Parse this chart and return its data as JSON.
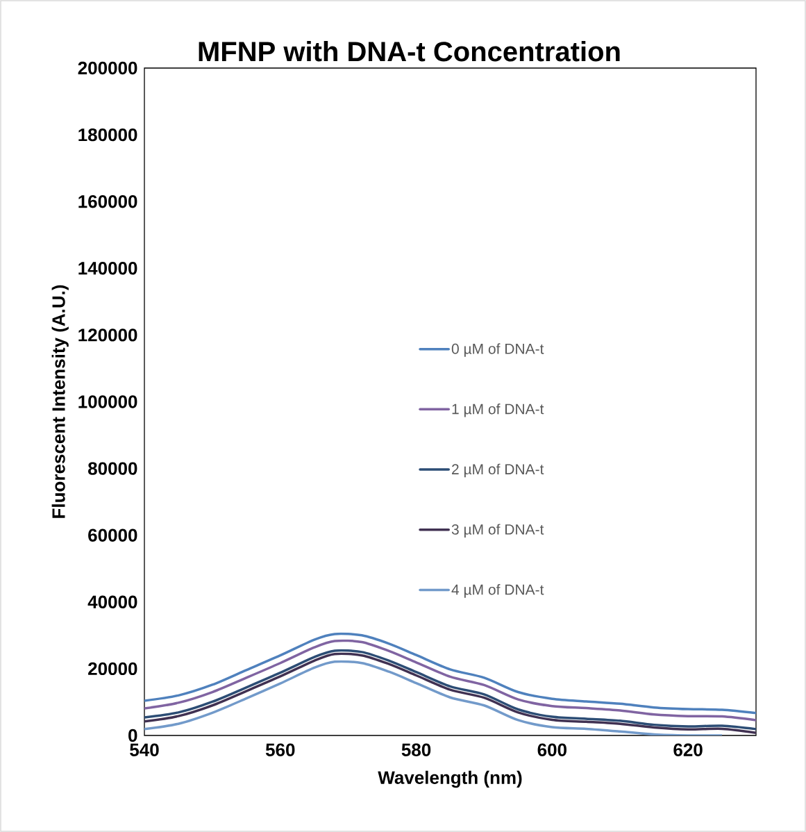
{
  "chart_data": {
    "type": "line",
    "title": "MFNP with DNA-t Concentration",
    "xlabel": "Wavelength (nm)",
    "ylabel": "Fluorescent Intensity (A.U.)",
    "x": [
      540,
      545,
      550,
      555,
      560,
      565,
      568,
      572,
      576,
      580,
      585,
      590,
      595,
      600,
      605,
      610,
      615,
      620,
      625,
      630
    ],
    "series": [
      {
        "name": "0 µM of DNA-t",
        "color": "#4f81bd",
        "values": [
          10400,
          12000,
          15200,
          19600,
          24000,
          28700,
          30400,
          30000,
          27500,
          24100,
          19800,
          17300,
          13000,
          11000,
          10200,
          9500,
          8400,
          7900,
          7700,
          6700
        ]
      },
      {
        "name": "1 µM of DNA-t",
        "color": "#8064a2",
        "values": [
          8100,
          9800,
          13000,
          17300,
          21700,
          26400,
          28300,
          28000,
          25300,
          21900,
          17600,
          15100,
          10800,
          8800,
          8200,
          7500,
          6300,
          5800,
          5700,
          4600
        ]
      },
      {
        "name": "2 µM of DNA-t",
        "color": "#2c4d75",
        "values": [
          5400,
          6900,
          10100,
          14400,
          18800,
          23500,
          25400,
          25000,
          22400,
          19000,
          14700,
          12300,
          7800,
          5600,
          5000,
          4400,
          3200,
          2700,
          2900,
          1900
        ]
      },
      {
        "name": "3 µM of DNA-t",
        "color": "#403152",
        "values": [
          4200,
          5800,
          9000,
          13300,
          17700,
          22400,
          24400,
          24000,
          21400,
          18000,
          13700,
          11300,
          6900,
          4700,
          4100,
          3500,
          2400,
          1800,
          2000,
          800
        ]
      },
      {
        "name": "4 µM of DNA-t",
        "color": "#729aca",
        "values": [
          1900,
          3500,
          6800,
          11100,
          15600,
          20300,
          22100,
          21700,
          19100,
          15700,
          11400,
          9000,
          4600,
          2500,
          2000,
          1200,
          300,
          0,
          0,
          null
        ]
      }
    ],
    "xlim": [
      540,
      630
    ],
    "xticks": [
      540,
      560,
      580,
      600,
      620
    ],
    "ylim": [
      0,
      200000
    ],
    "yticks": [
      0,
      20000,
      40000,
      60000,
      80000,
      100000,
      120000,
      140000,
      160000,
      180000,
      200000
    ],
    "legend": "center"
  }
}
